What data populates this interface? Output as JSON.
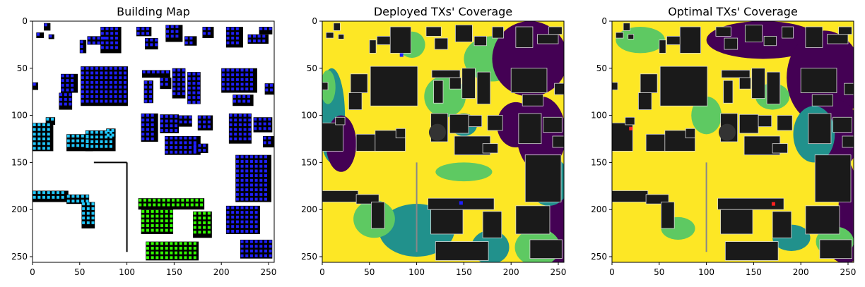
{
  "chart_data": [
    {
      "type": "heatmap",
      "title": "Building Map",
      "xlabel": "",
      "ylabel": "",
      "xlim": [
        0,
        256
      ],
      "ylim": [
        256,
        0
      ],
      "xticks": [
        0,
        50,
        100,
        150,
        200,
        250
      ],
      "yticks": [
        0,
        50,
        100,
        150,
        200,
        250
      ],
      "grid": false,
      "background_color": "#ffffff",
      "building_color": "#000000",
      "marker_colors": [
        "#1f1fff",
        "#1ec8ff",
        "#33ff00"
      ]
    },
    {
      "type": "heatmap",
      "title": "Deployed TXs' Coverage",
      "xlabel": "",
      "ylabel": "",
      "xlim": [
        0,
        256
      ],
      "ylim": [
        256,
        0
      ],
      "xticks": [
        0,
        50,
        100,
        150,
        200,
        250
      ],
      "yticks": [
        0,
        50,
        100,
        150,
        200,
        250
      ],
      "grid": false,
      "colormap": [
        "#440154",
        "#21918c",
        "#5ec962",
        "#fde725"
      ],
      "building_color": "#1a1a1a",
      "tx_color": "#1f1fff"
    },
    {
      "type": "heatmap",
      "title": "Optimal TXs' Coverage",
      "xlabel": "",
      "ylabel": "",
      "xlim": [
        0,
        256
      ],
      "ylim": [
        256,
        0
      ],
      "xticks": [
        0,
        50,
        100,
        150,
        200,
        250
      ],
      "yticks": [
        0,
        50,
        100,
        150,
        200,
        250
      ],
      "grid": false,
      "colormap": [
        "#440154",
        "#21918c",
        "#5ec962",
        "#fde725"
      ],
      "building_color": "#1a1a1a",
      "tx_color": "#ff2020"
    }
  ]
}
